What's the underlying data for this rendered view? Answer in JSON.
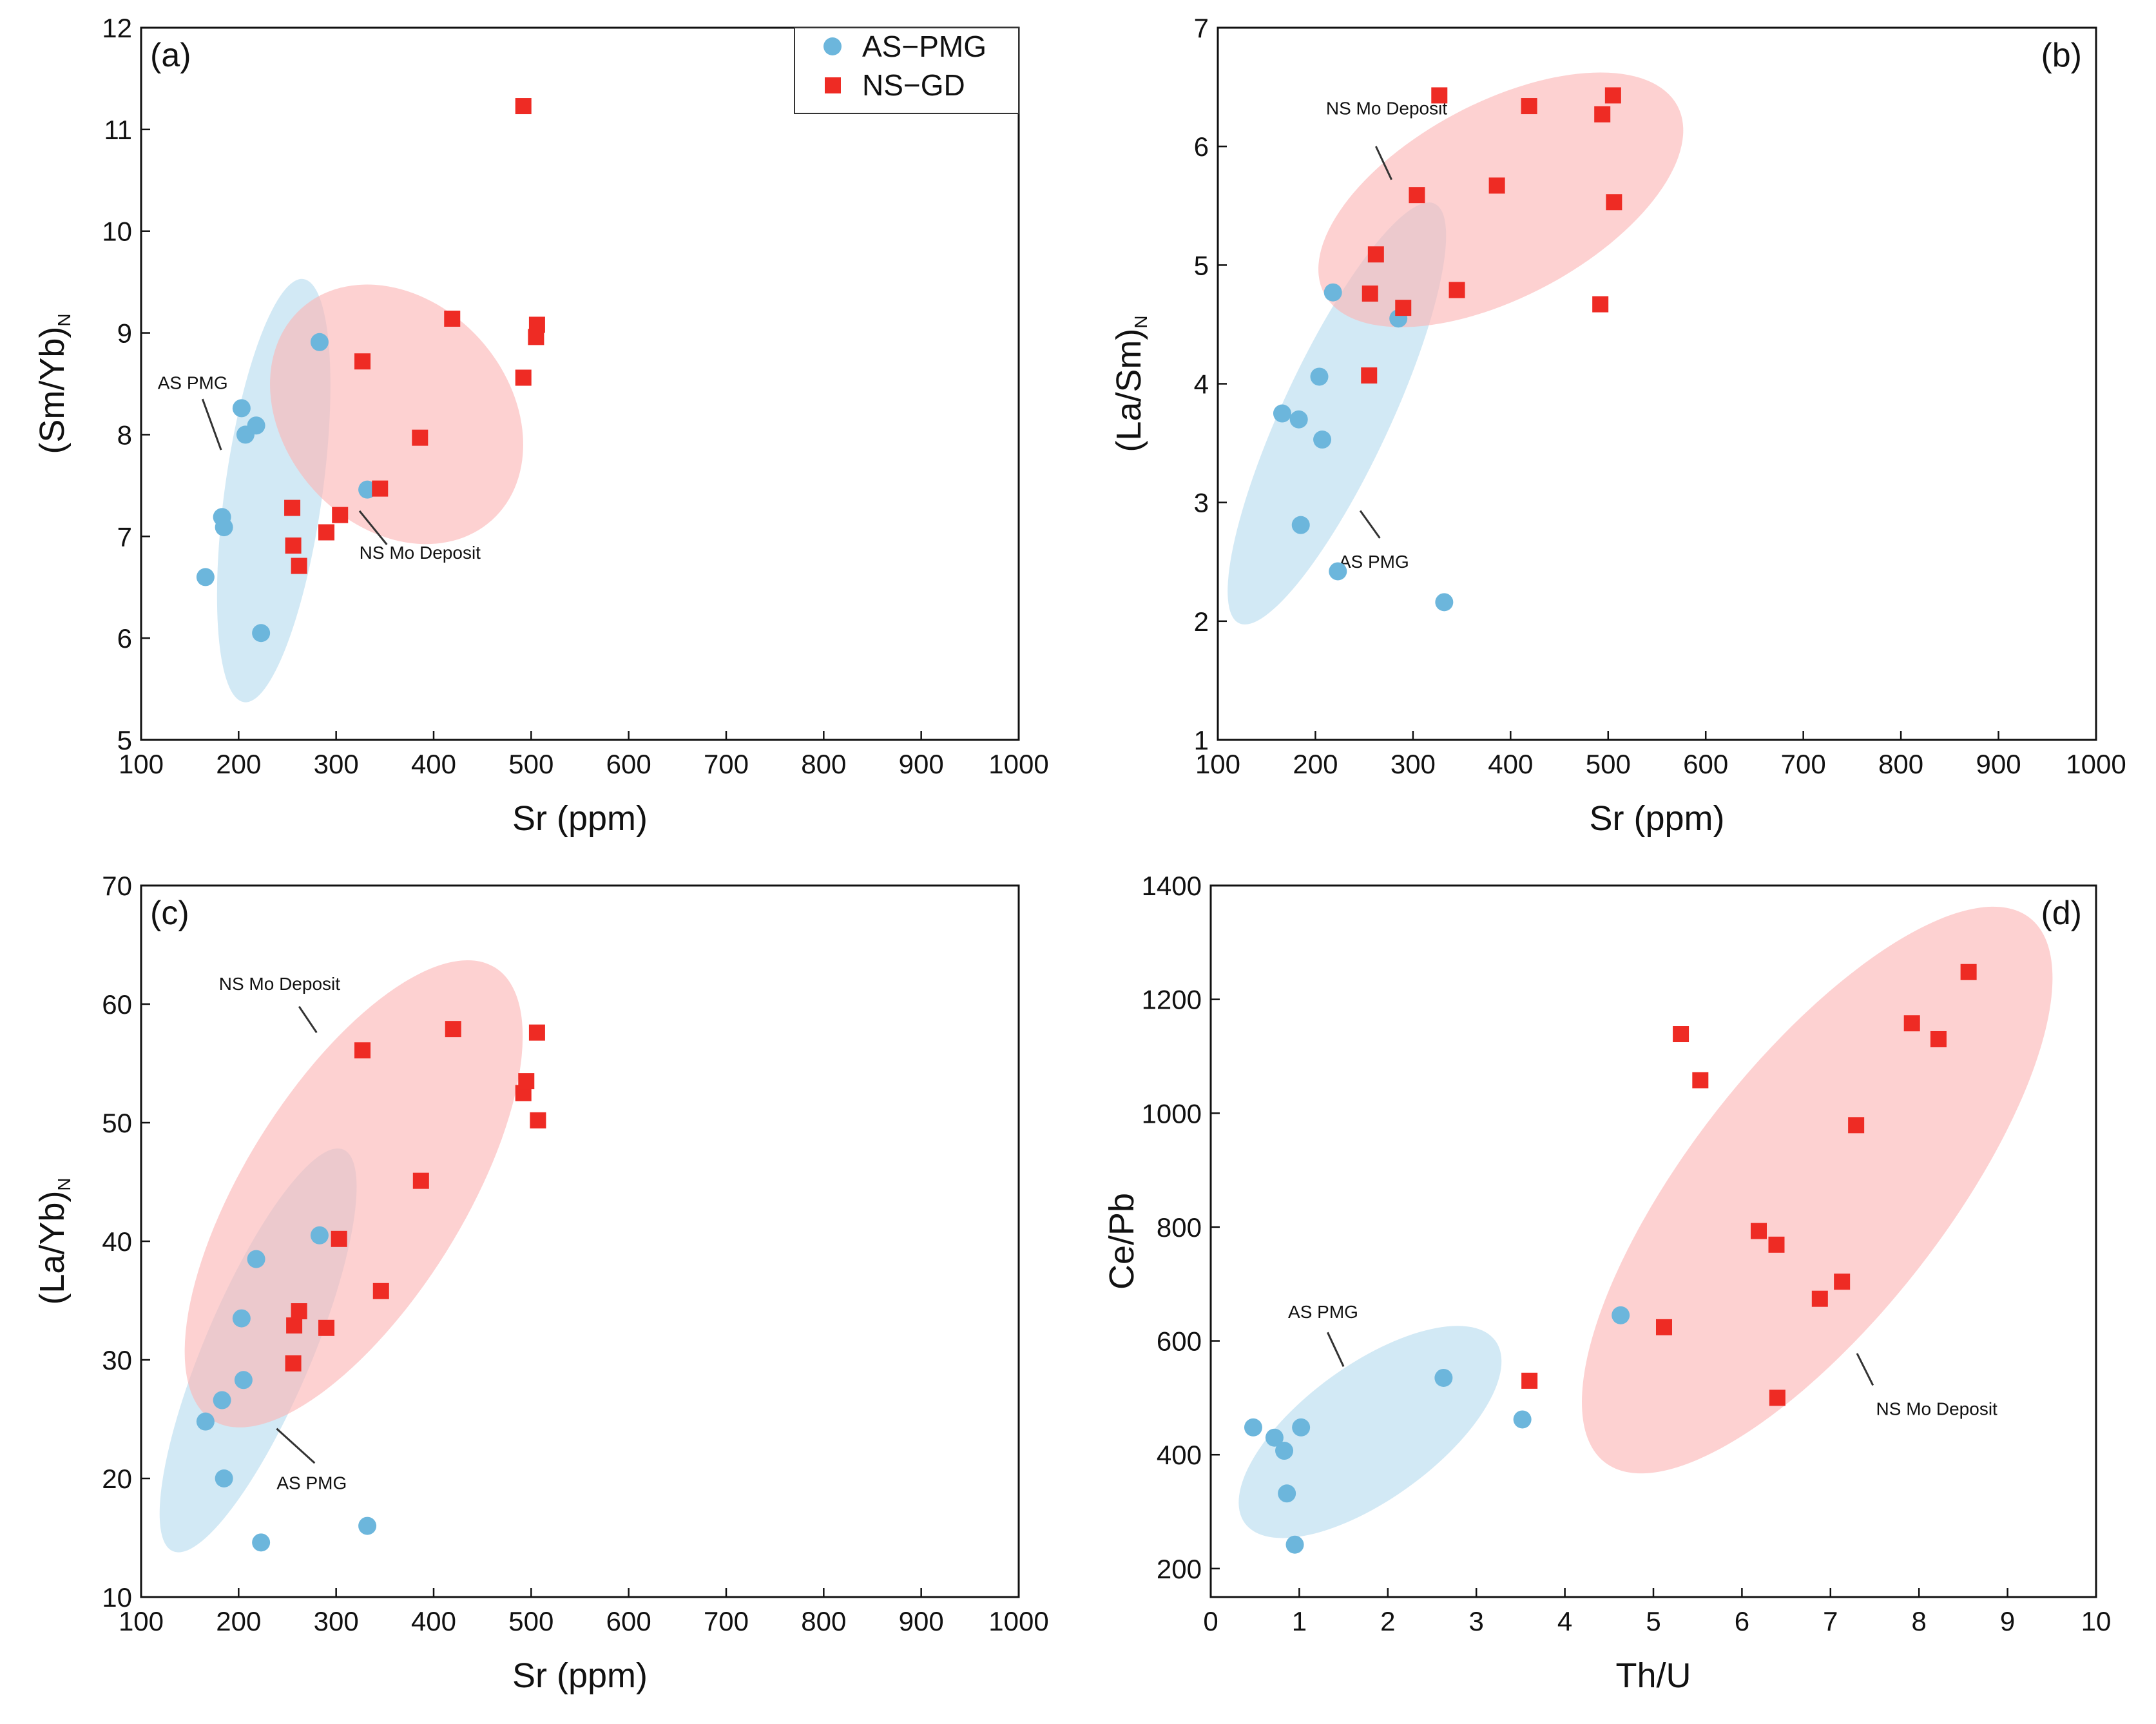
{
  "figure": {
    "legend": {
      "items": [
        {
          "label": "AS−PMG",
          "marker": "circle",
          "color": "#6cb6dc"
        },
        {
          "label": "NS−GD",
          "marker": "square",
          "color": "#ee2b24"
        }
      ]
    },
    "colors": {
      "as_marker": "#6cb6dc",
      "ns_marker": "#ee2b24",
      "as_ellipse": "#b6dcef",
      "ns_ellipse": "#fbb5b5",
      "axis": "#111111"
    }
  },
  "chart_data": [
    {
      "id": "a",
      "type": "scatter",
      "panel_label": "(a)",
      "xlabel": "Sr (ppm)",
      "ylabel_main": "(Sm/Yb)",
      "ylabel_sub": "N",
      "xlim": [
        100,
        1000
      ],
      "ylim": [
        5,
        12
      ],
      "xticks": [
        100,
        200,
        300,
        400,
        500,
        600,
        700,
        800,
        900,
        1000
      ],
      "yticks": [
        5,
        6,
        7,
        8,
        9,
        10,
        11,
        12
      ],
      "panel_label_position": "top-left",
      "show_legend": true,
      "series": [
        {
          "name": "AS−PMG",
          "marker": "circle",
          "x": [
            166,
            183,
            185,
            203,
            207,
            218,
            223,
            283,
            332
          ],
          "y": [
            6.6,
            7.19,
            7.09,
            8.26,
            8.0,
            8.09,
            6.05,
            8.91,
            7.46
          ]
        },
        {
          "name": "NS−GD",
          "marker": "square",
          "x": [
            255,
            256,
            262,
            290,
            304,
            327,
            345,
            386,
            419,
            492,
            505,
            506
          ],
          "y": [
            7.28,
            6.91,
            6.71,
            7.04,
            7.21,
            8.72,
            7.47,
            7.97,
            9.14,
            8.56,
            8.96,
            9.08
          ]
        },
        {
          "name": "NS−GD",
          "marker": "square",
          "x": [
            492
          ],
          "y": [
            11.23
          ]
        }
      ],
      "ellipses": [
        {
          "group": "AS",
          "cx": 236,
          "cy": 7.45,
          "rx_data": 50,
          "ry_data": 2.1,
          "angle_deg": 8
        },
        {
          "group": "NS",
          "cx": 362,
          "cy": 8.2,
          "rx_data": 115,
          "ry_data": 1.4,
          "angle_deg": -42
        }
      ],
      "annotations": [
        {
          "text": "AS PMG",
          "x": 153,
          "y": 8.45,
          "lx1": 163,
          "ly1": 8.35,
          "lx2": 182,
          "ly2": 7.85
        },
        {
          "text": "NS Mo Deposit",
          "x": 386,
          "y": 6.78,
          "lx1": 324,
          "ly1": 7.25,
          "lx2": 352,
          "ly2": 6.92
        }
      ]
    },
    {
      "id": "b",
      "type": "scatter",
      "panel_label": "(b)",
      "xlabel": "Sr (ppm)",
      "ylabel_main": "(La/Sm)",
      "ylabel_sub": "N",
      "xlim": [
        100,
        1000
      ],
      "ylim": [
        1,
        7
      ],
      "xticks": [
        100,
        200,
        300,
        400,
        500,
        600,
        700,
        800,
        900,
        1000
      ],
      "yticks": [
        1,
        2,
        3,
        4,
        5,
        6,
        7
      ],
      "panel_label_position": "top-right",
      "show_legend": false,
      "series": [
        {
          "name": "AS−PMG",
          "marker": "circle",
          "x": [
            166,
            183,
            185,
            204,
            207,
            218,
            223,
            285,
            332
          ],
          "y": [
            3.75,
            3.7,
            2.81,
            4.06,
            3.53,
            4.77,
            2.42,
            4.55,
            2.16
          ]
        },
        {
          "name": "NS−GD",
          "marker": "square",
          "x": [
            255,
            256,
            262,
            290,
            304,
            327,
            345,
            386,
            419,
            492,
            494,
            505,
            506
          ],
          "y": [
            4.07,
            4.76,
            5.09,
            4.64,
            5.59,
            6.43,
            4.79,
            5.67,
            6.34,
            4.67,
            6.27,
            6.43,
            5.53
          ]
        }
      ],
      "ellipses": [
        {
          "group": "AS",
          "cx": 222,
          "cy": 3.75,
          "rx_data": 55,
          "ry_data": 1.95,
          "angle_deg": 25
        },
        {
          "group": "NS",
          "cx": 390,
          "cy": 5.55,
          "rx_data": 205,
          "ry_data": 0.82,
          "angle_deg": -28
        }
      ],
      "annotations": [
        {
          "text": "NS Mo Deposit",
          "x": 273,
          "y": 6.27,
          "lx1": 262,
          "ly1": 6.0,
          "lx2": 278,
          "ly2": 5.72
        },
        {
          "text": "AS PMG",
          "x": 260,
          "y": 2.45,
          "lx1": 266,
          "ly1": 2.7,
          "lx2": 246,
          "ly2": 2.93
        }
      ]
    },
    {
      "id": "c",
      "type": "scatter",
      "panel_label": "(c)",
      "xlabel": "Sr (ppm)",
      "ylabel_main": "(La/Yb)",
      "ylabel_sub": "N",
      "xlim": [
        100,
        1000
      ],
      "ylim": [
        10,
        70
      ],
      "xticks": [
        100,
        200,
        300,
        400,
        500,
        600,
        700,
        800,
        900,
        1000
      ],
      "yticks": [
        10,
        20,
        30,
        40,
        50,
        60,
        70
      ],
      "panel_label_position": "top-left",
      "show_legend": false,
      "series": [
        {
          "name": "AS−PMG",
          "marker": "circle",
          "x": [
            166,
            183,
            185,
            203,
            205,
            218,
            223,
            283,
            332
          ],
          "y": [
            24.8,
            26.6,
            20.0,
            33.5,
            28.3,
            38.5,
            14.6,
            40.5,
            16.0
          ]
        },
        {
          "name": "NS−GD",
          "marker": "square",
          "x": [
            256,
            257,
            262,
            290,
            303,
            327,
            346,
            387,
            420,
            492,
            495,
            506,
            507
          ],
          "y": [
            29.7,
            32.9,
            34.1,
            32.7,
            40.2,
            56.1,
            35.8,
            45.1,
            57.9,
            52.5,
            53.5,
            57.6,
            50.2
          ]
        }
      ],
      "ellipses": [
        {
          "group": "AS",
          "cx": 220,
          "cy": 30.8,
          "rx_data": 55,
          "ry_data": 18.4,
          "angle_deg": 23
        },
        {
          "group": "NS",
          "cx": 318,
          "cy": 44,
          "rx_data": 112,
          "ry_data": 22.5,
          "angle_deg": 32
        }
      ],
      "annotations": [
        {
          "text": "NS Mo Deposit",
          "x": 242,
          "y": 61.2,
          "lx1": 262,
          "ly1": 59.8,
          "lx2": 280,
          "ly2": 57.6
        },
        {
          "text": "AS PMG",
          "x": 275,
          "y": 19.1,
          "lx1": 278,
          "ly1": 21.3,
          "lx2": 239,
          "ly2": 24.2
        }
      ]
    },
    {
      "id": "d",
      "type": "scatter",
      "panel_label": "(d)",
      "xlabel": "Th/U",
      "ylabel_main": "Ce/Pb",
      "ylabel_sub": "",
      "xlim": [
        0,
        10
      ],
      "ylim": [
        150,
        1400
      ],
      "xticks": [
        0,
        1,
        2,
        3,
        4,
        5,
        6,
        7,
        8,
        9,
        10
      ],
      "yticks": [
        200,
        400,
        600,
        800,
        1000,
        1200,
        1400
      ],
      "panel_label_position": "top-right",
      "show_legend": false,
      "series": [
        {
          "name": "AS−PMG",
          "marker": "circle",
          "x": [
            0.48,
            0.72,
            0.83,
            0.86,
            0.95,
            1.02,
            2.63,
            3.52,
            4.63
          ],
          "y": [
            448,
            430,
            407,
            332,
            242,
            448,
            535,
            462,
            645
          ]
        },
        {
          "name": "NS−GD",
          "marker": "square",
          "x": [
            3.6,
            5.12,
            5.31,
            5.53,
            6.19,
            6.39,
            6.4,
            6.88,
            7.13,
            7.29,
            7.92,
            8.22,
            8.56
          ],
          "y": [
            530,
            624,
            1139,
            1058,
            793,
            769,
            500,
            674,
            704,
            979,
            1158,
            1130,
            1248
          ]
        }
      ],
      "ellipses": [
        {
          "group": "AS",
          "cx": 1.8,
          "cy": 440,
          "rx_data": 1.75,
          "ry_data": 118,
          "angle_deg": -36
        },
        {
          "group": "NS",
          "cx": 6.85,
          "cy": 865,
          "rx_data": 3.9,
          "ry_data": 225,
          "angle_deg": -52
        }
      ],
      "annotations": [
        {
          "text": "AS PMG",
          "x": 1.27,
          "y": 640,
          "lx1": 1.32,
          "ly1": 615,
          "lx2": 1.5,
          "ly2": 555
        },
        {
          "text": "NS Mo Deposit",
          "x": 8.2,
          "y": 470,
          "lx1": 7.48,
          "ly1": 522,
          "lx2": 7.3,
          "ly2": 578
        }
      ]
    }
  ]
}
